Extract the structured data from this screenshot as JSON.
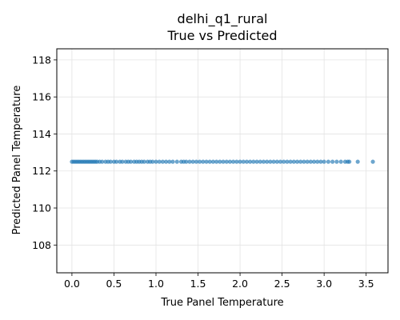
{
  "chart_data": {
    "type": "scatter",
    "title": "delhi_q1_rural",
    "subtitle": "True vs Predicted",
    "xlabel": "True Panel Temperature",
    "ylabel": "Predicted Panel Temperature",
    "xlim": [
      -0.18,
      3.76
    ],
    "ylim": [
      106.5,
      118.6
    ],
    "xticks": [
      0.0,
      0.5,
      1.0,
      1.5,
      2.0,
      2.5,
      3.0,
      3.5
    ],
    "xtick_labels": [
      "0.0",
      "0.5",
      "1.0",
      "1.5",
      "2.0",
      "2.5",
      "3.0",
      "3.5"
    ],
    "yticks": [
      108,
      110,
      112,
      114,
      116,
      118
    ],
    "ytick_labels": [
      "108",
      "110",
      "112",
      "114",
      "116",
      "118"
    ],
    "grid": true,
    "point_color": "#1f77b4",
    "series": [
      {
        "x": [
          0.0,
          0.02,
          0.04,
          0.06,
          0.08,
          0.1,
          0.12,
          0.14,
          0.16,
          0.18,
          0.2,
          0.22,
          0.24,
          0.26,
          0.28,
          0.3,
          0.33,
          0.36,
          0.4,
          0.43,
          0.46,
          0.5,
          0.53,
          0.57,
          0.6,
          0.64,
          0.67,
          0.7,
          0.74,
          0.77,
          0.8,
          0.83,
          0.86,
          0.9,
          0.93,
          0.96,
          1.0,
          1.04,
          1.08,
          1.12,
          1.16,
          1.2,
          1.25,
          1.3,
          1.33,
          1.36,
          1.4,
          1.44,
          1.48,
          1.52,
          1.56,
          1.6,
          1.64,
          1.68,
          1.72,
          1.76,
          1.8,
          1.84,
          1.88,
          1.92,
          1.96,
          2.0,
          2.04,
          2.08,
          2.12,
          2.16,
          2.2,
          2.24,
          2.28,
          2.32,
          2.36,
          2.4,
          2.44,
          2.48,
          2.52,
          2.56,
          2.6,
          2.64,
          2.68,
          2.72,
          2.76,
          2.8,
          2.84,
          2.88,
          2.92,
          2.96,
          3.0,
          3.05,
          3.1,
          3.15,
          3.2,
          3.25,
          3.28,
          3.3,
          3.4,
          3.58
        ],
        "y": [
          112.5,
          112.5,
          112.5,
          112.5,
          112.5,
          112.5,
          112.5,
          112.5,
          112.5,
          112.5,
          112.5,
          112.5,
          112.5,
          112.5,
          112.5,
          112.5,
          112.5,
          112.5,
          112.5,
          112.5,
          112.5,
          112.5,
          112.5,
          112.5,
          112.5,
          112.5,
          112.5,
          112.5,
          112.5,
          112.5,
          112.5,
          112.5,
          112.5,
          112.5,
          112.5,
          112.5,
          112.5,
          112.5,
          112.5,
          112.5,
          112.5,
          112.5,
          112.5,
          112.5,
          112.5,
          112.5,
          112.5,
          112.5,
          112.5,
          112.5,
          112.5,
          112.5,
          112.5,
          112.5,
          112.5,
          112.5,
          112.5,
          112.5,
          112.5,
          112.5,
          112.5,
          112.5,
          112.5,
          112.5,
          112.5,
          112.5,
          112.5,
          112.5,
          112.5,
          112.5,
          112.5,
          112.5,
          112.5,
          112.5,
          112.5,
          112.5,
          112.5,
          112.5,
          112.5,
          112.5,
          112.5,
          112.5,
          112.5,
          112.5,
          112.5,
          112.5,
          112.5,
          112.5,
          112.5,
          112.5,
          112.5,
          112.5,
          112.5,
          112.5,
          112.5,
          112.5
        ]
      }
    ]
  }
}
